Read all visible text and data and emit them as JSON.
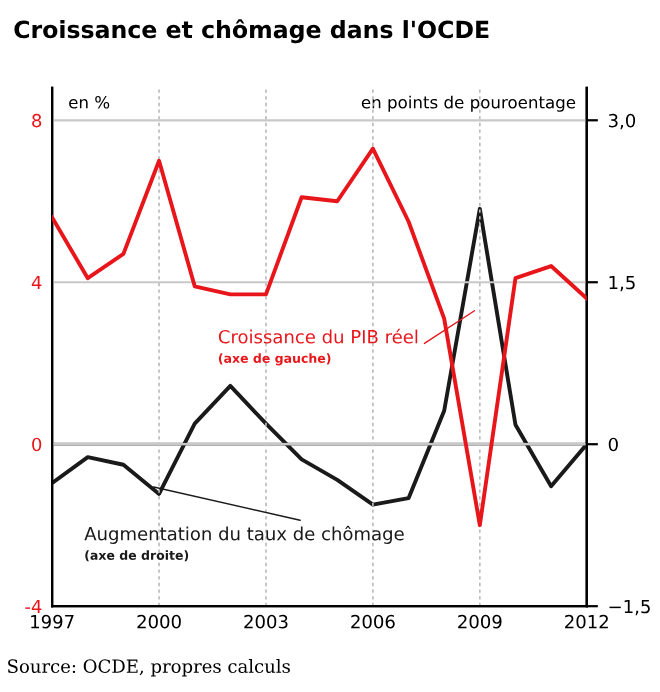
{
  "chart_data": {
    "type": "line",
    "title": "Croissance et chômage dans l'OCDE",
    "ylabel": "en %",
    "y2label": "en points de pouroentage",
    "x": [
      1997,
      1998,
      1999,
      2000,
      2001,
      2002,
      2003,
      2004,
      2005,
      2006,
      2007,
      2008,
      2009,
      2010,
      2011,
      2012
    ],
    "series": [
      {
        "name": "Croissance du PIB réel",
        "color": "#e8161b",
        "values": [
          5.6,
          4.1,
          4.7,
          7.0,
          3.9,
          3.7,
          3.7,
          6.1,
          6.0,
          7.3,
          5.5,
          3.1,
          -2.0,
          4.1,
          4.4,
          3.6
        ]
      },
      {
        "name": "Augmentation du taux de chômage",
        "color": "#1a1a1a",
        "axis": "y2",
        "values": [
          -0.36,
          -0.12,
          -0.19,
          -0.46,
          0.19,
          0.54,
          0.19,
          -0.14,
          -0.33,
          -0.56,
          -0.5,
          0.31,
          2.18,
          0.18,
          -0.39,
          0.0
        ]
      }
    ],
    "annotations": [
      "(axe de gauche)",
      "(axe de droite)",
      "Source: OCDE, propres calculs"
    ],
    "xlim": [
      1997,
      2012
    ],
    "xticks": [
      1997,
      2000,
      2003,
      2006,
      2009,
      2012
    ],
    "ylim": [
      -4,
      8.8
    ],
    "yticks": [
      -4,
      0,
      4,
      8
    ],
    "y2lim": [
      -1.5,
      3.3
    ],
    "y2ticks": [
      {
        "value": -1.5,
        "label": "−1,5"
      },
      0,
      {
        "value": 1.5,
        "label": "1,5"
      },
      {
        "value": 3.0,
        "label": "3,0"
      }
    ],
    "grid": true,
    "marker": "none",
    "line_style": "solid"
  }
}
